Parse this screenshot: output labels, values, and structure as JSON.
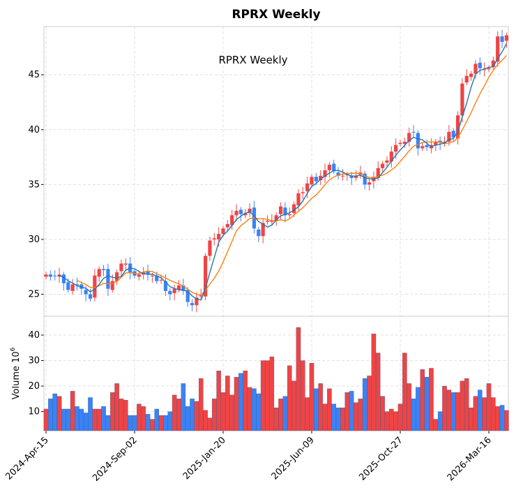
{
  "chart_data": {
    "type": "candlestick",
    "title": "RPRX  Weekly",
    "inner_title": "RPRX  Weekly",
    "ylabel_volume": "Volume",
    "volume_exponent": "6",
    "price_ylim": [
      23.0,
      49.4
    ],
    "price_ticks": [
      25,
      30,
      35,
      40,
      45
    ],
    "volume_ylim": [
      2.5,
      47.4
    ],
    "volume_ticks": [
      10,
      20,
      30,
      40
    ],
    "x_tick_labels": [
      {
        "index": 0,
        "label": "2024-Apr-15"
      },
      {
        "index": 20,
        "label": "2024-Sep-02"
      },
      {
        "index": 40,
        "label": "2025-Jan-20"
      },
      {
        "index": 60,
        "label": "2025-Jun-09"
      },
      {
        "index": 80,
        "label": "2025-Oct-27"
      },
      {
        "index": 100,
        "label": "2026-Mar-16"
      }
    ],
    "closes": [
      26.8,
      26.6,
      26.7,
      26.8,
      26.0,
      25.4,
      25.9,
      25.8,
      25.5,
      25.0,
      24.6,
      26.7,
      27.3,
      27.2,
      25.5,
      26.2,
      27.0,
      27.8,
      27.8,
      27.0,
      26.7,
      26.8,
      27.0,
      26.8,
      26.7,
      26.2,
      26.3,
      25.3,
      25.0,
      25.5,
      25.8,
      25.3,
      24.3,
      24.0,
      24.7,
      24.9,
      28.5,
      29.9,
      30.1,
      30.5,
      31.0,
      31.4,
      32.2,
      32.6,
      32.3,
      32.4,
      32.8,
      31.0,
      30.3,
      31.5,
      31.7,
      31.7,
      32.2,
      33.0,
      32.2,
      32.3,
      33.2,
      34.2,
      34.3,
      35.1,
      35.7,
      35.3,
      35.8,
      36.3,
      36.8,
      36.2,
      35.8,
      35.8,
      35.9,
      35.6,
      35.8,
      36.1,
      35.0,
      35.2,
      35.7,
      36.5,
      36.9,
      37.2,
      38.0,
      38.6,
      38.8,
      38.9,
      39.7,
      39.8,
      38.3,
      38.5,
      38.4,
      38.6,
      38.9,
      38.8,
      38.9,
      39.8,
      39.3,
      41.3,
      44.2,
      44.9,
      45.1,
      46.0,
      45.6,
      45.5,
      45.6,
      46.3,
      48.5,
      48.0,
      48.6
    ],
    "volumes": [
      11,
      15,
      17,
      16,
      11,
      11,
      18,
      12,
      11,
      9.5,
      15.5,
      11,
      11,
      12,
      8.5,
      17.5,
      21,
      15,
      14.5,
      8.5,
      8.5,
      13,
      12,
      9,
      7,
      11,
      8.5,
      8.5,
      10,
      16.5,
      15,
      21,
      12,
      15,
      14,
      23,
      10.5,
      7.5,
      15,
      26,
      17.5,
      24,
      16.5,
      23.5,
      25,
      26,
      19.5,
      19,
      17,
      30,
      30,
      31.5,
      11.5,
      15,
      16,
      28,
      22,
      43,
      30,
      15.5,
      29,
      19,
      21,
      13,
      19,
      13,
      11.5,
      11.5,
      17.5,
      18,
      13.5,
      15,
      23,
      24,
      40.5,
      33,
      16,
      10,
      11,
      10,
      13,
      33,
      21,
      15,
      19.5,
      26.5,
      23.5,
      27,
      7,
      10,
      20,
      18.5,
      17.5,
      17.5,
      22,
      23,
      11.5,
      16,
      18.5,
      15.5,
      21,
      15.5,
      12,
      12.5,
      10.5
    ],
    "ma_short_window": 4,
    "ma_long_window": 8,
    "colors": {
      "up": "#ef4444",
      "down": "#3b82f6",
      "ma_short": "#1f77b4",
      "ma_long": "#ff7f0e",
      "grid": "#e0e0e0"
    }
  }
}
